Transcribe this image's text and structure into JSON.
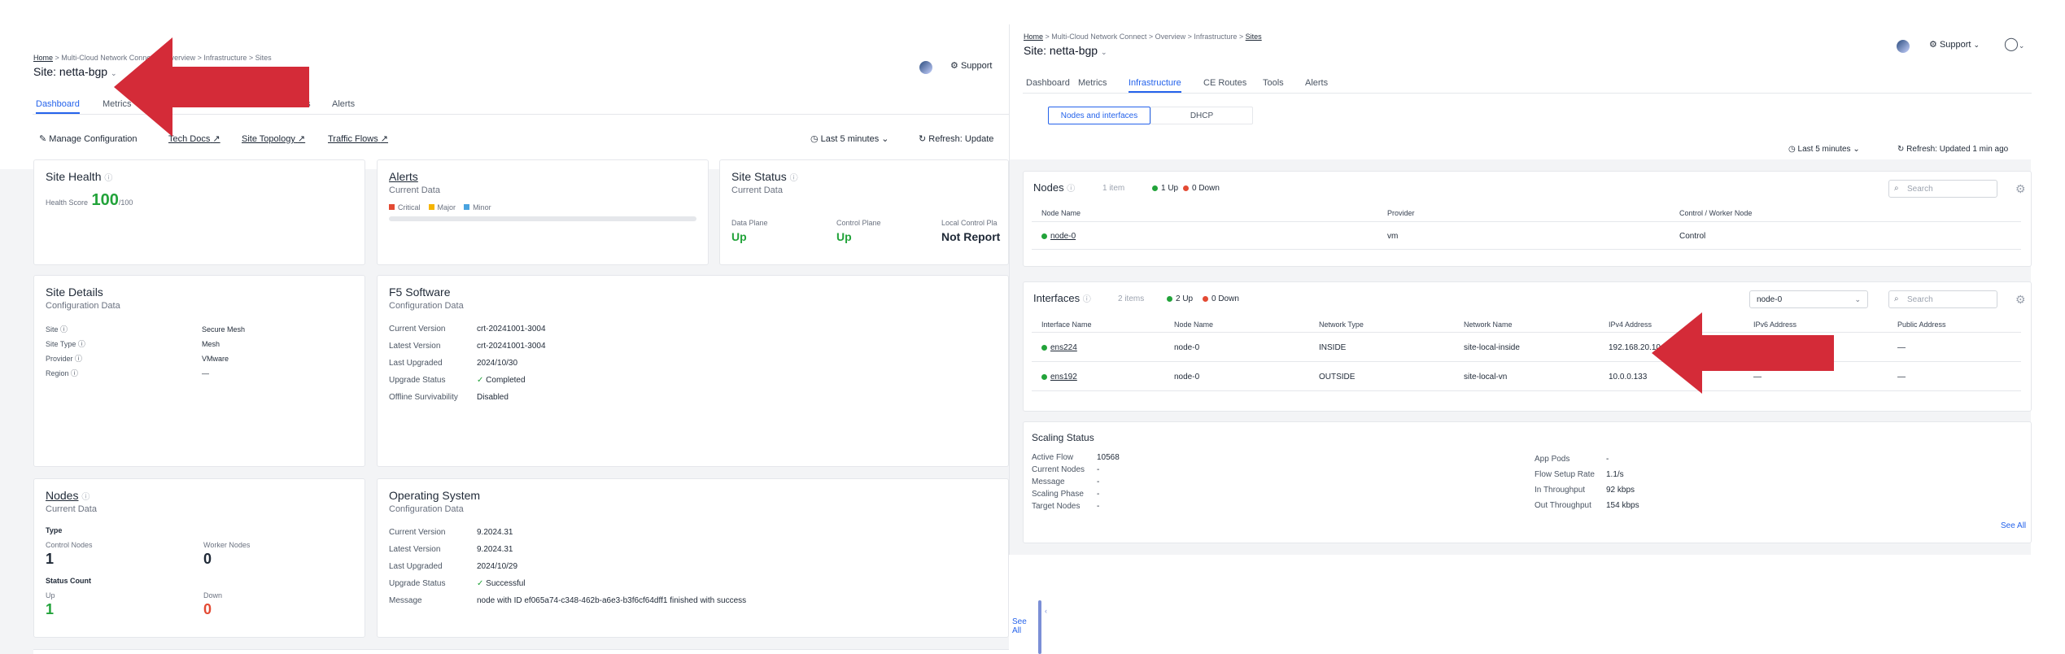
{
  "left": {
    "breadcrumb": [
      "Home",
      "Multi-Cloud Network Connect",
      "Overview",
      "Infrastructure",
      "Sites"
    ],
    "site_title": "Site: netta-bgp",
    "support_label": "Support",
    "tabs": [
      "Dashboard",
      "Metrics",
      "Infrastructure",
      "CE Routes",
      "Tools",
      "Alerts"
    ],
    "toolbar": {
      "manage": "Manage Configuration",
      "tech_docs": "Tech Docs",
      "site_topology": "Site Topology",
      "traffic_flows": "Traffic Flows",
      "time": "Last 5 minutes",
      "refresh": "Refresh: Update"
    },
    "site_health": {
      "title": "Site Health",
      "score_label": "Health Score",
      "score": "100",
      "score_max": "/100"
    },
    "alerts": {
      "title": "Alerts",
      "sub": "Current Data",
      "legend": [
        "Critical",
        "Major",
        "Minor"
      ]
    },
    "site_status": {
      "title": "Site Status",
      "sub": "Current Data",
      "data_plane_label": "Data Plane",
      "data_plane": "Up",
      "control_plane_label": "Control Plane",
      "control_plane": "Up",
      "local_cp_label": "Local Control Pla",
      "local_cp": "Not Report"
    },
    "site_details": {
      "title": "Site Details",
      "sub": "Configuration Data",
      "rows": [
        {
          "k": "Site",
          "v": "Secure Mesh"
        },
        {
          "k": "Site Type",
          "v": "Mesh"
        },
        {
          "k": "Provider",
          "v": "VMware"
        },
        {
          "k": "Region",
          "v": "—"
        }
      ]
    },
    "f5": {
      "title": "F5 Software",
      "sub": "Configuration Data",
      "rows": [
        {
          "k": "Current Version",
          "v": "crt-20241001-3004"
        },
        {
          "k": "Latest Version",
          "v": "crt-20241001-3004"
        },
        {
          "k": "Last Upgraded",
          "v": "2024/10/30"
        },
        {
          "k": "Upgrade Status",
          "v": "Completed"
        },
        {
          "k": "Offline Survivability",
          "v": "Disabled"
        }
      ]
    },
    "nodes": {
      "title": "Nodes",
      "sub": "Current Data",
      "type_label": "Type",
      "control_label": "Control Nodes",
      "control": "1",
      "worker_label": "Worker Nodes",
      "worker": "0",
      "status_label": "Status Count",
      "up_label": "Up",
      "up": "1",
      "down_label": "Down",
      "down": "0"
    },
    "os": {
      "title": "Operating System",
      "sub": "Configuration Data",
      "rows": [
        {
          "k": "Current Version",
          "v": "9.2024.31"
        },
        {
          "k": "Latest Version",
          "v": "9.2024.31"
        },
        {
          "k": "Last Upgraded",
          "v": "2024/10/29"
        },
        {
          "k": "Upgrade Status",
          "v": "Successful"
        },
        {
          "k": "Message",
          "v": "node with ID ef065a74-c348-462b-a6e3-b3f6cf64dff1 finished with success"
        }
      ]
    },
    "see_all": "See All"
  },
  "right": {
    "breadcrumb": [
      "Home",
      "Multi-Cloud Network Connect",
      "Overview",
      "Infrastructure",
      "Sites"
    ],
    "site_title": "Site: netta-bgp",
    "support_label": "Support",
    "tabs": [
      "Dashboard",
      "Metrics",
      "Infrastructure",
      "CE Routes",
      "Tools",
      "Alerts"
    ],
    "subtabs": [
      "Nodes and interfaces",
      "DHCP"
    ],
    "time": "Last 5 minutes",
    "refresh": "Refresh: Updated 1 min ago",
    "nodes": {
      "title": "Nodes",
      "count": "1 item",
      "up": "1 Up",
      "down": "0 Down",
      "search": "Search",
      "headers": [
        "Node Name",
        "Provider",
        "Control / Worker Node"
      ],
      "rows": [
        {
          "name": "node-0",
          "provider": "vm",
          "role": "Control"
        }
      ]
    },
    "interfaces": {
      "title": "Interfaces",
      "count": "2 items",
      "up": "2 Up",
      "down": "0 Down",
      "select": "node-0",
      "search": "Search",
      "headers": [
        "Interface Name",
        "Node Name",
        "Network Type",
        "Network Name",
        "IPv4 Address",
        "IPv6 Address",
        "Public Address"
      ],
      "rows": [
        {
          "iface": "ens224",
          "node": "node-0",
          "type": "INSIDE",
          "net": "site-local-inside",
          "ipv4": "192.168.20.10",
          "ipv6": "—",
          "pub": "—"
        },
        {
          "iface": "ens192",
          "node": "node-0",
          "type": "OUTSIDE",
          "net": "site-local-vn",
          "ipv4": "10.0.0.133",
          "ipv6": "—",
          "pub": "—"
        }
      ]
    },
    "scaling": {
      "title": "Scaling Status",
      "left": [
        {
          "k": "Active Flow",
          "v": "10568"
        },
        {
          "k": "Current Nodes",
          "v": "-"
        },
        {
          "k": "Message",
          "v": "-"
        },
        {
          "k": "Scaling Phase",
          "v": "-"
        },
        {
          "k": "Target Nodes",
          "v": "-"
        }
      ],
      "right": [
        {
          "k": "App Pods",
          "v": "-"
        },
        {
          "k": "Flow Setup Rate",
          "v": "1.1/s"
        },
        {
          "k": "In Throughput",
          "v": "92 kbps"
        },
        {
          "k": "Out Throughput",
          "v": "154 kbps"
        }
      ],
      "see_all": "See All"
    }
  },
  "colors": {
    "accent": "#2563eb",
    "arrow": "#d42b38",
    "up": "#22a33a",
    "down": "#e34a33"
  }
}
